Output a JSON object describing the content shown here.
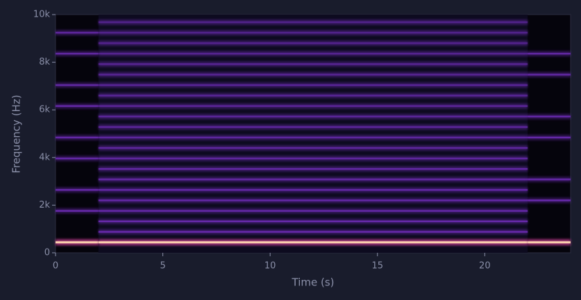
{
  "chart_data": {
    "type": "spectrogram",
    "xlabel": "Time (s)",
    "ylabel": "Frequency (Hz)",
    "xlim": [
      0,
      24
    ],
    "ylim": [
      0,
      10000
    ],
    "xticks": [
      0,
      5,
      10,
      15,
      20
    ],
    "yticks": [
      0,
      {
        "value": 2000,
        "label": "2k"
      },
      {
        "value": 4000,
        "label": "4k"
      },
      {
        "value": 6000,
        "label": "6k"
      },
      {
        "value": 8000,
        "label": "8k"
      },
      {
        "value": 10000,
        "label": "10k"
      }
    ],
    "strong_color": "#ffd6b0",
    "weak_color": "#6a2bb0",
    "background_color": "#0d0b1f",
    "segments": [
      {
        "start": 0,
        "end": 2,
        "frequencies": [
          440,
          1760,
          2640,
          3960,
          4840,
          6160,
          7040,
          8360,
          9240
        ]
      },
      {
        "start": 2,
        "end": 22,
        "frequencies": [
          440,
          880,
          1320,
          1760,
          2200,
          2640,
          3080,
          3520,
          3960,
          4400,
          4840,
          5280,
          5720,
          6160,
          6600,
          7040,
          7480,
          7920,
          8360,
          8800,
          9240,
          9680
        ]
      },
      {
        "start": 22,
        "end": 24,
        "frequencies": [
          440,
          2200,
          3080,
          4840,
          5720,
          7480,
          8360
        ]
      }
    ]
  }
}
